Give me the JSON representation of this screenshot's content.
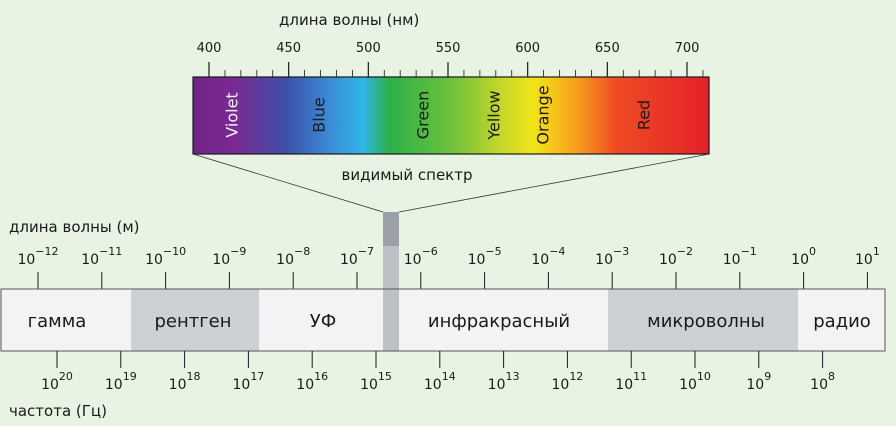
{
  "visible": {
    "title": "длина волны (нм)",
    "ticks": [
      "400",
      "450",
      "500",
      "550",
      "600",
      "650",
      "700"
    ],
    "caption": "видимый спектр",
    "colors": [
      {
        "name": "Violet",
        "bg": "#7a2a93",
        "light": true
      },
      {
        "name": "Blue",
        "bg": "#3c6fc0",
        "light": false
      },
      {
        "name": "Green",
        "bg": "#4eba44",
        "light": false
      },
      {
        "name": "Yellow",
        "bg": "#e2de1e",
        "light": false
      },
      {
        "name": "Orange",
        "bg": "#f6951e",
        "light": false
      },
      {
        "name": "Red",
        "bg": "#e4252a",
        "light": false
      }
    ]
  },
  "wavelength_label": "длина волны (м)",
  "wavelength_ticks": [
    {
      "base": "10",
      "exp": "−12"
    },
    {
      "base": "10",
      "exp": "−11"
    },
    {
      "base": "10",
      "exp": "−10"
    },
    {
      "base": "10",
      "exp": "−9"
    },
    {
      "base": "10",
      "exp": "−8"
    },
    {
      "base": "10",
      "exp": "−7"
    },
    {
      "base": "10",
      "exp": "−6"
    },
    {
      "base": "10",
      "exp": "−5"
    },
    {
      "base": "10",
      "exp": "−4"
    },
    {
      "base": "10",
      "exp": "−3"
    },
    {
      "base": "10",
      "exp": "−2"
    },
    {
      "base": "10",
      "exp": "−1"
    },
    {
      "base": "10",
      "exp": "0"
    },
    {
      "base": "10",
      "exp": "1"
    }
  ],
  "bands": [
    {
      "label": "гамма",
      "color": "#f3f3f3"
    },
    {
      "label": "рентген",
      "color": "#cdd0d4"
    },
    {
      "label": "УФ",
      "color": "#f3f3f3"
    },
    {
      "label": "",
      "color": "#bcc1c6"
    },
    {
      "label": "инфракрасный",
      "color": "#f3f3f3"
    },
    {
      "label": "микроволны",
      "color": "#cdd0d4"
    },
    {
      "label": "радио",
      "color": "#f3f3f3"
    }
  ],
  "frequency_label": "частота (Гц)",
  "frequency_ticks": [
    {
      "base": "10",
      "exp": "20"
    },
    {
      "base": "10",
      "exp": "19"
    },
    {
      "base": "10",
      "exp": "18"
    },
    {
      "base": "10",
      "exp": "17"
    },
    {
      "base": "10",
      "exp": "16"
    },
    {
      "base": "10",
      "exp": "15"
    },
    {
      "base": "10",
      "exp": "14"
    },
    {
      "base": "10",
      "exp": "13"
    },
    {
      "base": "10",
      "exp": "12"
    },
    {
      "base": "10",
      "exp": "11"
    },
    {
      "base": "10",
      "exp": "10"
    },
    {
      "base": "10",
      "exp": "9"
    },
    {
      "base": "10",
      "exp": "8"
    }
  ]
}
